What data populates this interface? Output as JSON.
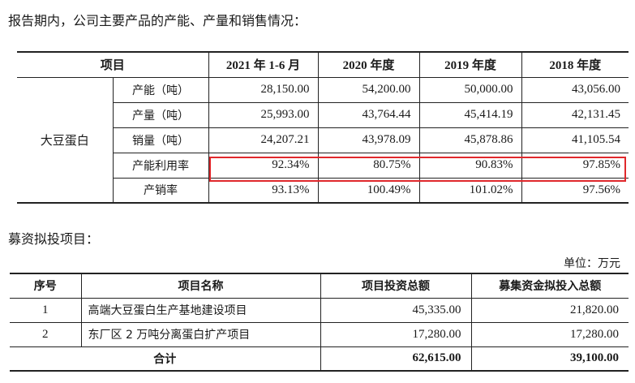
{
  "intro": "报告期内，公司主要产品的产能、产量和销售情况：",
  "capacity_table": {
    "header": {
      "item": "项目",
      "periods": [
        "2021 年 1-6 月",
        "2020 年度",
        "2019 年度",
        "2018 年度"
      ]
    },
    "group": "大豆蛋白",
    "rows": [
      {
        "label": "产能（吨）",
        "values": [
          "28,150.00",
          "54,200.00",
          "50,000.00",
          "43,056.00"
        ]
      },
      {
        "label": "产量（吨）",
        "values": [
          "25,993.00",
          "43,764.44",
          "45,414.19",
          "42,131.45"
        ]
      },
      {
        "label": "销量（吨）",
        "values": [
          "24,207.21",
          "43,978.09",
          "45,878.86",
          "41,105.54"
        ]
      },
      {
        "label": "产能利用率",
        "values": [
          "92.34%",
          "80.75%",
          "90.83%",
          "97.85%"
        ],
        "highlighted": true
      },
      {
        "label": "产销率",
        "values": [
          "93.13%",
          "100.49%",
          "101.02%",
          "97.56%"
        ]
      }
    ],
    "highlight_color": "#e0282c"
  },
  "projects_intro": "募资拟投项目：",
  "unit": "单位：万元",
  "projects_table": {
    "header": {
      "no": "序号",
      "name": "项目名称",
      "total": "项目投资总额",
      "raised": "募集资金拟投入总额"
    },
    "rows": [
      {
        "no": "1",
        "name": "高端大豆蛋白生产基地建设项目",
        "total": "45,335.00",
        "raised": "21,820.00"
      },
      {
        "no": "2",
        "name": "东厂区 2 万吨分离蛋白扩产项目",
        "total": "17,280.00",
        "raised": "17,280.00"
      }
    ],
    "sum": {
      "label": "合计",
      "total": "62,615.00",
      "raised": "39,100.00"
    }
  }
}
